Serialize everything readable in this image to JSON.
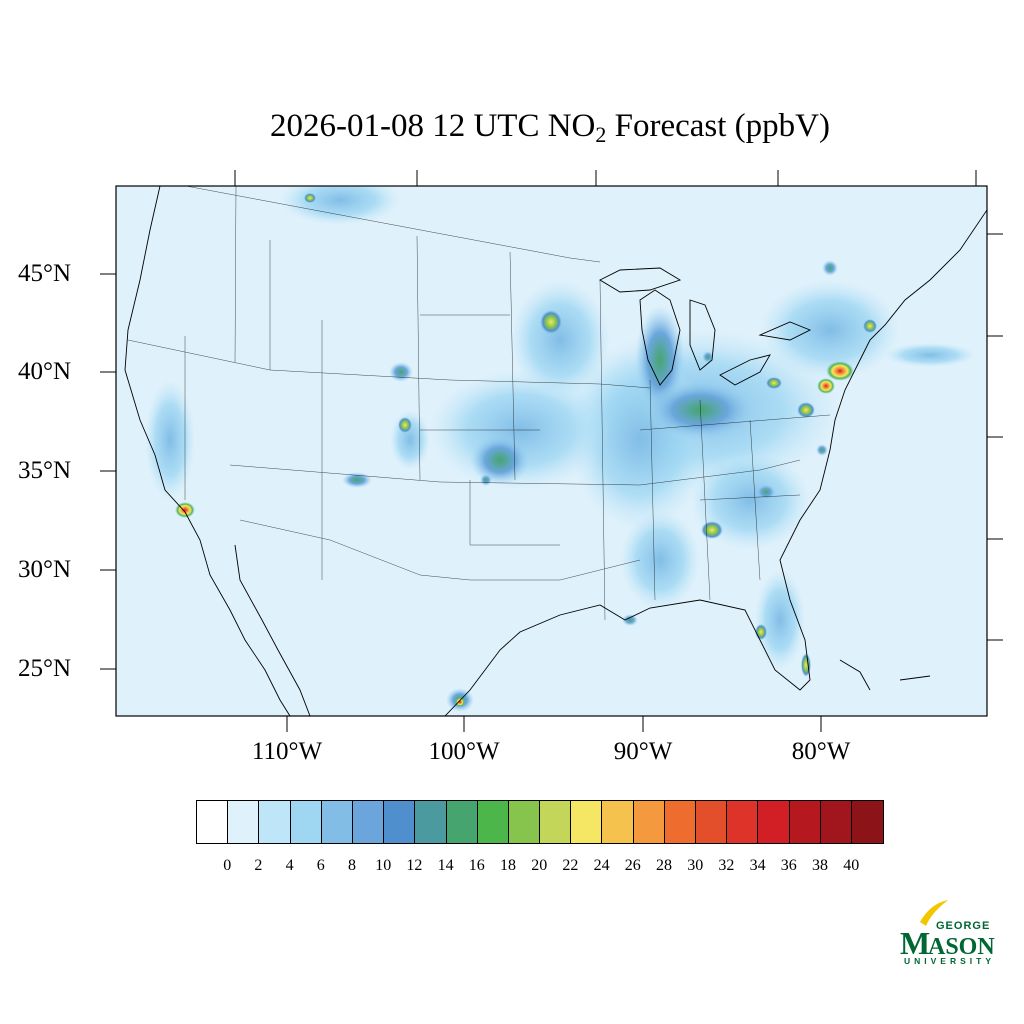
{
  "title": {
    "main": "2026-01-08 12 UTC NO",
    "subscript": "2",
    "rest": " Forecast (ppbV)"
  },
  "map": {
    "latitude_labels": [
      "45°N",
      "40°N",
      "35°N",
      "30°N",
      "25°N"
    ],
    "longitude_labels": [
      "110°W",
      "100°W",
      "90°W",
      "80°W"
    ],
    "background_color": "#dff1fb"
  },
  "legend": {
    "colors": [
      "#ffffff",
      "#dff1fb",
      "#bfe5f8",
      "#9fd7f3",
      "#82bde6",
      "#6aa6dc",
      "#4f8fce",
      "#4a9aa0",
      "#46a56f",
      "#4cb64a",
      "#86c44e",
      "#c4d65a",
      "#f5e663",
      "#f5c24e",
      "#f5993e",
      "#ee6c2e",
      "#e44f2b",
      "#dd3328",
      "#d21f26",
      "#b6181f",
      "#a0161c",
      "#8c1418"
    ],
    "ticks": [
      "0",
      "2",
      "4",
      "6",
      "8",
      "10",
      "12",
      "14",
      "16",
      "18",
      "20",
      "22",
      "24",
      "26",
      "28",
      "30",
      "32",
      "34",
      "36",
      "38",
      "40"
    ]
  },
  "logo": {
    "line1": "GEORGE",
    "line2": "MASON",
    "line3": "UNIVERSITY",
    "color": "#006633",
    "accent": "#f2c700"
  }
}
